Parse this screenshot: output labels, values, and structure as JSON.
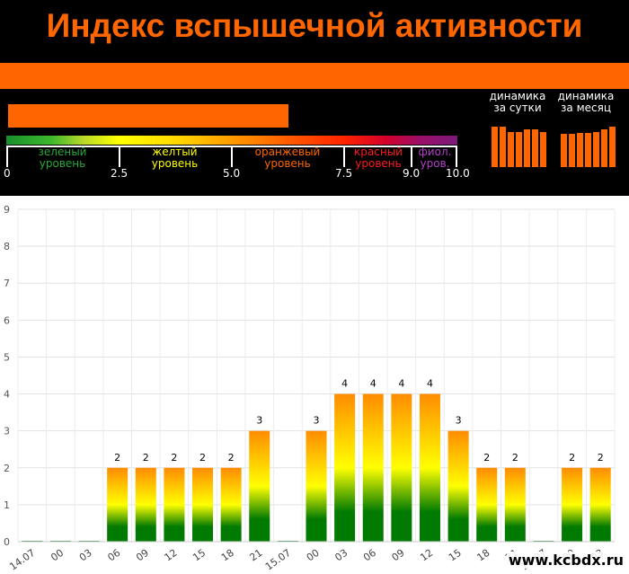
{
  "header": {
    "title": "Индекс вспышечной активности"
  },
  "scale": {
    "zones": [
      {
        "line1": "зеленый",
        "line2": "уровень",
        "color": "#2aa83a"
      },
      {
        "line1": "желтый",
        "line2": "уровень",
        "color": "#ffff00"
      },
      {
        "line1": "оранжевый",
        "line2": "уровень",
        "color": "#ff6600"
      },
      {
        "line1": "красный",
        "line2": "уровень",
        "color": "#ff1a1a"
      },
      {
        "line1": "фиол.",
        "line2": "уров.",
        "color": "#b040c8"
      }
    ],
    "numbers": [
      "0",
      "2.5",
      "5.0",
      "7.5",
      "9.0",
      "10.0"
    ]
  },
  "dynamics": {
    "day": {
      "line1": "динамика",
      "line2": "за сутки",
      "levels": [
        0.77,
        0.77,
        0.68,
        0.68,
        0.72,
        0.72,
        0.68
      ]
    },
    "month": {
      "line1": "динамика",
      "line2": "за месяц",
      "levels": [
        0.64,
        0.64,
        0.66,
        0.66,
        0.68,
        0.72,
        0.77
      ]
    }
  },
  "chart_data": {
    "type": "bar",
    "ylim": [
      0,
      9
    ],
    "yticks": [
      "0",
      "1",
      "2",
      "3",
      "4",
      "5",
      "6",
      "7",
      "8",
      "9"
    ],
    "categories": [
      "14.07",
      "00",
      "03",
      "06",
      "09",
      "12",
      "15",
      "18",
      "21",
      "15.07",
      "00",
      "03",
      "06",
      "09",
      "12",
      "15",
      "18",
      "21",
      "16.07",
      "00",
      "03"
    ],
    "values": [
      0,
      0,
      0,
      2,
      2,
      2,
      2,
      2,
      3,
      0,
      3,
      4,
      4,
      4,
      4,
      3,
      2,
      2,
      0,
      2,
      2
    ],
    "data_labels": [
      "",
      "",
      "",
      "2",
      "2",
      "2",
      "2",
      "2",
      "3",
      "",
      "3",
      "4",
      "4",
      "4",
      "4",
      "3",
      "2",
      "2",
      "",
      "2",
      "2"
    ],
    "grid": true,
    "colors": {
      "low": "#007a00",
      "mid": "#ffff00",
      "high": "#ff8c00"
    }
  },
  "watermark": "www.kcbdx.ru"
}
